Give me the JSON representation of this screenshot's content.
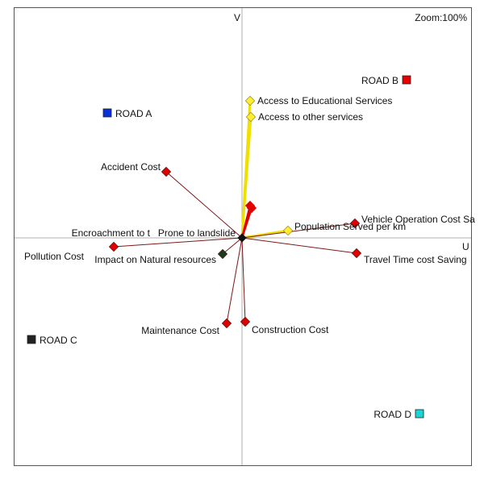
{
  "plot": {
    "zoom_label": "Zoom:100%",
    "v_axis_label": "V",
    "u_axis_label": "U"
  },
  "colors": {
    "frame": "#555555",
    "axis": "#b0b0b0",
    "criterion_line": "#7a1a1a",
    "criterion_marker": "#e00000",
    "yellow_line": "#f0e000",
    "yellow_marker": "#ffee33",
    "dark_marker": "#1e3a1e",
    "center": "#111111"
  },
  "criteria": [
    {
      "key": "access-educational",
      "label": "Access to Educational Services",
      "u": 0.1,
      "v": 1.7,
      "color": "yellow"
    },
    {
      "key": "access-other",
      "label": "Access to other services",
      "u": 0.11,
      "v": 1.5,
      "color": "yellow"
    },
    {
      "key": "population-served",
      "label": "Population Served per km",
      "u": 0.57,
      "v": 0.09,
      "color": "yellow"
    },
    {
      "key": "accident-cost",
      "label": "Accident Cost",
      "u": -0.94,
      "v": 0.82,
      "color": "red"
    },
    {
      "key": "vehicle-operation",
      "label": "Vehicle Operation Cost Sa",
      "u": 1.4,
      "v": 0.18,
      "color": "red"
    },
    {
      "key": "travel-time",
      "label": "Travel Time cost Saving",
      "u": 1.42,
      "v": -0.19,
      "color": "red"
    },
    {
      "key": "pollution-cost",
      "label": "Pollution Cost",
      "u": -1.59,
      "v": -0.11,
      "color": "red"
    },
    {
      "key": "encroachment",
      "label": "Encroachment to t",
      "u": 0.0,
      "v": 0.0,
      "color": "red"
    },
    {
      "key": "prone-landslide",
      "label": "Prone to landslide",
      "u": 0.0,
      "v": 0.0,
      "color": "red"
    },
    {
      "key": "impact-natural",
      "label": "Impact on  Natural resources",
      "u": -0.24,
      "v": -0.2,
      "color": "dark"
    },
    {
      "key": "maintenance-cost",
      "label": "Maintenance Cost",
      "u": -0.19,
      "v": -1.06,
      "color": "red"
    },
    {
      "key": "construction-cost",
      "label": "Construction Cost",
      "u": 0.04,
      "v": -1.04,
      "color": "red"
    },
    {
      "key": "small-red-a",
      "label": "",
      "u": 0.1,
      "v": 0.4,
      "color": "red"
    },
    {
      "key": "small-red-b",
      "label": "",
      "u": 0.12,
      "v": 0.37,
      "color": "red"
    }
  ],
  "alternatives": [
    {
      "key": "road-a",
      "label": "ROAD A",
      "u": -1.67,
      "v": 1.55,
      "color": "#0b2fd8"
    },
    {
      "key": "road-b",
      "label": "ROAD B",
      "u": 2.04,
      "v": 1.96,
      "color": "#e60000"
    },
    {
      "key": "road-c",
      "label": "ROAD C",
      "u": -2.61,
      "v": -1.26,
      "color": "#222222"
    },
    {
      "key": "road-d",
      "label": "ROAD D",
      "u": 2.2,
      "v": -2.18,
      "color": "#19d6d6"
    }
  ]
}
